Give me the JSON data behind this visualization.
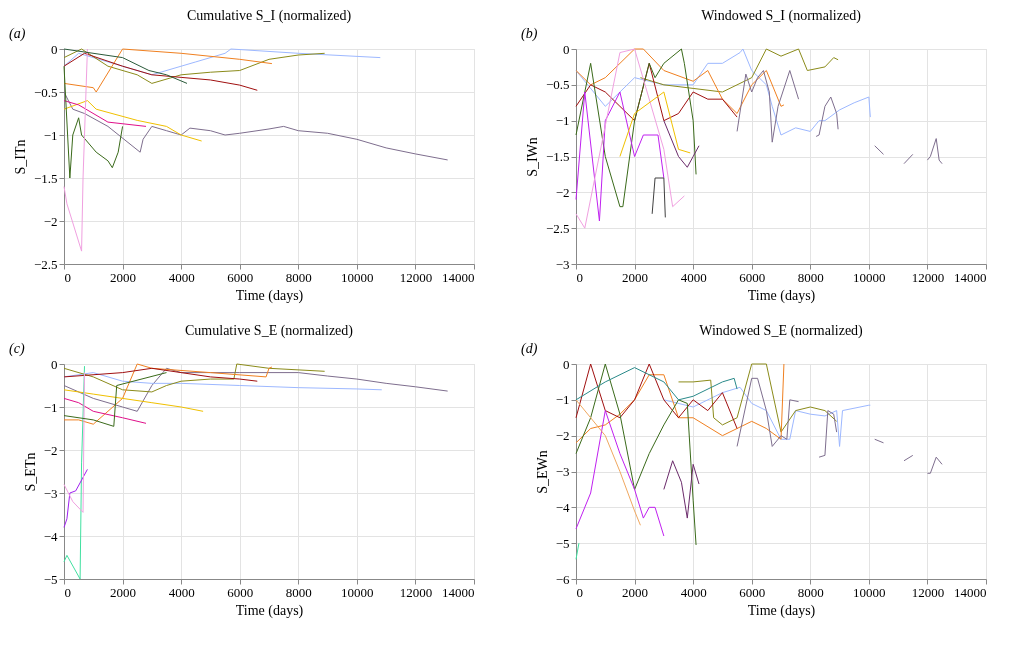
{
  "chart_data": [
    {
      "type": "line",
      "title": "Cumulative S_I (normalized)",
      "xlabel": "Time (days)",
      "ylabel": "S_ITn",
      "annotations": [
        "(a)"
      ],
      "grid": true,
      "xlim": [
        0,
        14000
      ],
      "xticks": [
        0,
        2000,
        4000,
        6000,
        8000,
        10000,
        12000,
        14000
      ],
      "ylim": [
        -2.5,
        0
      ],
      "yticks": [
        -2.5,
        -2,
        -1.5,
        -1,
        -0.5,
        0
      ],
      "series": [
        {
          "color": "#7e6e8e",
          "x": [
            0,
            300,
            700,
            1500,
            2600,
            2700,
            3000,
            3500,
            4000,
            4300,
            5000,
            5500,
            6000,
            7000,
            7500,
            8000,
            9000,
            10000,
            11000,
            12000,
            13100
          ],
          "values": [
            -0.5,
            -0.7,
            -0.75,
            -0.9,
            -1.2,
            -1.05,
            -0.9,
            -0.95,
            -1.0,
            -0.92,
            -0.95,
            -1.0,
            -0.98,
            -0.93,
            -0.9,
            -0.95,
            -0.98,
            -1.05,
            -1.15,
            -1.22,
            -1.29
          ]
        },
        {
          "color": "#9db8ff",
          "x": [
            0,
            500,
            1500,
            3000,
            4500,
            5500,
            5700,
            8000,
            10800
          ],
          "values": [
            -0.2,
            -0.05,
            -0.15,
            -0.3,
            -0.15,
            -0.05,
            0,
            -0.05,
            -0.1
          ]
        },
        {
          "color": "#8b8b1a",
          "x": [
            0,
            600,
            1500,
            2500,
            3000,
            4000,
            5000,
            6000,
            7000,
            8000,
            8900
          ],
          "values": [
            -0.1,
            0,
            -0.2,
            -0.3,
            -0.4,
            -0.3,
            -0.27,
            -0.25,
            -0.12,
            -0.07,
            -0.05
          ]
        },
        {
          "color": "#f08020",
          "x": [
            0,
            1000,
            1100,
            2000,
            4000,
            6000,
            7100
          ],
          "values": [
            -0.4,
            -0.45,
            -0.5,
            0,
            -0.05,
            -0.12,
            -0.17
          ]
        },
        {
          "color": "#a01010",
          "x": [
            0,
            700,
            2000,
            3000,
            4000,
            5000,
            6000,
            6600
          ],
          "values": [
            -0.2,
            -0.05,
            -0.2,
            -0.3,
            -0.33,
            -0.36,
            -0.42,
            -0.48
          ]
        },
        {
          "color": "#f0c000",
          "x": [
            0,
            800,
            1100,
            2500,
            3500,
            4000,
            4700
          ],
          "values": [
            -0.7,
            -0.6,
            -0.7,
            -0.83,
            -0.9,
            -1.0,
            -1.07
          ]
        },
        {
          "color": "#e0108a",
          "x": [
            0,
            500,
            1500,
            2800
          ],
          "values": [
            -0.6,
            -0.65,
            -0.85,
            -0.9
          ]
        },
        {
          "color": "#3a6a1a",
          "x": [
            0,
            200,
            300,
            500,
            600,
            1100,
            1500,
            1650,
            1850,
            2000
          ],
          "values": [
            -0.2,
            -1.5,
            -1.0,
            -0.8,
            -1.0,
            -1.2,
            -1.3,
            -1.38,
            -1.2,
            -0.9
          ]
        },
        {
          "color": "#f0a0e0",
          "x": [
            0,
            100,
            600,
            650,
            800
          ],
          "values": [
            -1.6,
            -1.8,
            -2.35,
            -1.5,
            0
          ]
        },
        {
          "color": "#2a5a3a",
          "x": [
            0,
            2000,
            2900,
            3500,
            4200
          ],
          "values": [
            0,
            -0.1,
            -0.25,
            -0.3,
            -0.4
          ]
        }
      ]
    },
    {
      "type": "line",
      "title": "Windowed S_I (normalized)",
      "xlabel": "Time (days)",
      "ylabel": "S_IWn",
      "annotations": [
        "(b)"
      ],
      "grid": true,
      "xlim": [
        0,
        14000
      ],
      "xticks": [
        0,
        2000,
        4000,
        6000,
        8000,
        10000,
        12000,
        14000
      ],
      "ylim": [
        -3,
        0
      ],
      "yticks": [
        -3,
        -2.5,
        -2,
        -1.5,
        -1,
        -0.5,
        0
      ],
      "series": [
        {
          "color": "#9db8ff",
          "x": [
            0,
            1000,
            2000,
            3000,
            4000,
            4500,
            5000,
            5600,
            5700,
            6000,
            6500,
            6700,
            7000,
            7500,
            8000,
            8300,
            8500,
            9000,
            9500,
            10000,
            10050
          ],
          "values": [
            -0.3,
            -0.8,
            -0.4,
            -0.5,
            -0.5,
            -0.2,
            -0.2,
            -0.05,
            0,
            -0.3,
            -0.5,
            -0.8,
            -1.2,
            -1.1,
            -1.15,
            -1.0,
            -1.0,
            -0.85,
            -0.75,
            -0.67,
            -0.95
          ]
        },
        {
          "color": "#8b8b1a",
          "x": [
            2200,
            3000,
            4000,
            5000,
            6000,
            6500,
            7000,
            7600,
            7900,
            8500,
            8800,
            8950
          ],
          "values": [
            -0.4,
            -0.5,
            -0.55,
            -0.6,
            -0.4,
            0,
            -0.1,
            0,
            -0.3,
            -0.25,
            -0.12,
            -0.15
          ]
        },
        {
          "color": "#f08020",
          "x": [
            0,
            500,
            1000,
            2000,
            2300,
            3000,
            4000,
            4500,
            5000,
            5500,
            6000,
            6500,
            6800,
            7000,
            7100
          ],
          "values": [
            -0.3,
            -0.5,
            -0.4,
            0,
            0,
            -0.3,
            -0.45,
            -0.3,
            -0.7,
            -0.9,
            -0.5,
            -0.3,
            -0.6,
            -0.8,
            -0.78
          ]
        },
        {
          "color": "#7e6e8e",
          "x": [
            5500,
            5800,
            6000,
            6200,
            6400,
            6600,
            6700,
            6900,
            7300,
            7600,
            7700,
            8200,
            8300,
            8500,
            8700,
            8900,
            8950,
            9000,
            10200,
            10500,
            10600,
            11200,
            11500,
            11600,
            12000,
            12100,
            12300,
            12400,
            12500
          ],
          "values": [
            -1.15,
            -0.35,
            -0.6,
            -0.4,
            -0.3,
            -0.6,
            -1.3,
            -0.8,
            -0.3,
            -0.7,
            null,
            -1.22,
            -1.2,
            -0.8,
            -0.67,
            -0.9,
            -1.12,
            null,
            -1.35,
            -1.47,
            null,
            -1.6,
            -1.47,
            null,
            -1.55,
            -1.5,
            -1.25,
            -1.55,
            -1.6
          ]
        },
        {
          "color": "#a01010",
          "x": [
            0,
            500,
            1000,
            1500,
            2000,
            2500,
            3000,
            3500,
            4000,
            4500,
            5000,
            5500
          ],
          "values": [
            -0.8,
            -0.5,
            -0.6,
            -0.8,
            -1.0,
            -0.2,
            -1.0,
            -0.9,
            -0.6,
            -0.7,
            -0.7,
            -0.95
          ]
        },
        {
          "color": "#3a6a1a",
          "x": [
            0,
            500,
            1000,
            1500,
            1600,
            2000,
            2500,
            2700,
            3000,
            3600,
            3700,
            4000,
            4100
          ],
          "values": [
            -1.2,
            -0.2,
            -1.5,
            -2.2,
            -2.2,
            -1.0,
            -0.2,
            -0.4,
            -0.2,
            0,
            -0.2,
            -1.0,
            -1.75
          ]
        },
        {
          "color": "#c020f0",
          "x": [
            0,
            300,
            800,
            1000,
            1500,
            2000,
            2300,
            2800,
            3000
          ],
          "values": [
            -2.1,
            -0.6,
            -2.4,
            -1.0,
            -0.6,
            -1.5,
            -1.2,
            -1.2,
            -1.8
          ]
        },
        {
          "color": "#f0a0e0",
          "x": [
            0,
            300,
            1500,
            2000,
            3000,
            3300,
            3700
          ],
          "values": [
            -2.3,
            -2.5,
            -0.05,
            0,
            -1.4,
            -2.2,
            -2.05
          ]
        },
        {
          "color": "#404040",
          "x": [
            2600,
            2700,
            3000,
            3050
          ],
          "values": [
            -2.3,
            -1.8,
            -1.8,
            -2.35
          ]
        },
        {
          "color": "#f0c000",
          "x": [
            1500,
            2000,
            3000,
            3500,
            3900
          ],
          "values": [
            -1.5,
            -0.9,
            -0.6,
            -1.4,
            -1.45
          ]
        },
        {
          "color": "#6a2a6a",
          "x": [
            3000,
            3500,
            3800,
            4000,
            4200
          ],
          "values": [
            -1.0,
            -1.5,
            -1.65,
            -1.5,
            -1.35
          ]
        }
      ]
    },
    {
      "type": "line",
      "title": "Cumulative S_E (normalized)",
      "xlabel": "Time (days)",
      "ylabel": "S_ETn",
      "annotations": [
        "(c)"
      ],
      "grid": true,
      "xlim": [
        0,
        14000
      ],
      "xticks": [
        0,
        2000,
        4000,
        6000,
        8000,
        10000,
        12000,
        14000
      ],
      "ylim": [
        -5,
        0
      ],
      "yticks": [
        -5,
        -4,
        -3,
        -2,
        -1,
        0
      ],
      "series": [
        {
          "color": "#7e6e8e",
          "x": [
            0,
            1000,
            2000,
            2500,
            3000,
            3500,
            4000,
            5000,
            6000,
            8000,
            9000,
            10000,
            11000,
            12000,
            13100
          ],
          "values": [
            -0.5,
            -0.8,
            -1.0,
            -1.1,
            -0.5,
            -0.1,
            -0.2,
            -0.2,
            -0.2,
            -0.2,
            -0.28,
            -0.35,
            -0.45,
            -0.53,
            -0.63
          ]
        },
        {
          "color": "#9db8ff",
          "x": [
            0,
            1000,
            2000,
            3000,
            4000,
            6000,
            8000,
            10000,
            10850
          ],
          "values": [
            -0.3,
            -0.2,
            -0.4,
            -0.45,
            -0.45,
            -0.5,
            -0.55,
            -0.58,
            -0.6
          ]
        },
        {
          "color": "#8b8b1a",
          "x": [
            0,
            1000,
            2000,
            3000,
            3500,
            4000,
            5000,
            5800,
            5900,
            7000,
            8900
          ],
          "values": [
            -0.1,
            -0.3,
            -0.6,
            -0.65,
            -0.5,
            -0.4,
            -0.35,
            -0.35,
            0,
            -0.1,
            -0.17
          ]
        },
        {
          "color": "#f08020",
          "x": [
            0,
            500,
            1000,
            2000,
            2500,
            3000,
            5000,
            6900,
            7000,
            7100
          ],
          "values": [
            -1.3,
            -1.3,
            -1.4,
            -0.8,
            0,
            -0.1,
            -0.2,
            -0.3,
            -0.1,
            -0.07
          ]
        },
        {
          "color": "#a01010",
          "x": [
            0,
            2000,
            3000,
            4000,
            5000,
            6000,
            6600
          ],
          "values": [
            -0.3,
            -0.2,
            -0.1,
            -0.2,
            -0.3,
            -0.35,
            -0.4
          ]
        },
        {
          "color": "#f0c000",
          "x": [
            0,
            1000,
            2000,
            3000,
            4000,
            4750
          ],
          "values": [
            -0.6,
            -0.7,
            -0.8,
            -0.9,
            -1.0,
            -1.1
          ]
        },
        {
          "color": "#e0108a",
          "x": [
            0,
            500,
            1000,
            2000,
            2800
          ],
          "values": [
            -0.8,
            -0.9,
            -1.1,
            -1.25,
            -1.38
          ]
        },
        {
          "color": "#40e0a0",
          "x": [
            0,
            100,
            550,
            600,
            700
          ],
          "values": [
            -4.6,
            -4.45,
            -5.0,
            -2.3,
            -0.05
          ]
        },
        {
          "color": "#a020f0",
          "x": [
            0,
            100,
            200,
            400,
            800
          ],
          "values": [
            -3.8,
            -3.6,
            -3.0,
            -2.95,
            -2.45
          ]
        },
        {
          "color": "#f0a0e0",
          "x": [
            0,
            300,
            650,
            700
          ],
          "values": [
            -2.8,
            -3.2,
            -3.45,
            -0.2
          ]
        },
        {
          "color": "#3a6a1a",
          "x": [
            0,
            1000,
            1700,
            1800,
            3500
          ],
          "values": [
            -1.2,
            -1.3,
            -1.45,
            -0.5,
            -0.2
          ]
        }
      ]
    },
    {
      "type": "line",
      "title": "Windowed S_E (normalized)",
      "xlabel": "Time (days)",
      "ylabel": "S_EWn",
      "annotations": [
        "(d)"
      ],
      "grid": true,
      "xlim": [
        0,
        14000
      ],
      "xticks": [
        0,
        2000,
        4000,
        6000,
        8000,
        10000,
        12000,
        14000
      ],
      "ylim": [
        -6,
        0
      ],
      "yticks": [
        -6,
        -5,
        -4,
        -3,
        -2,
        -1,
        0
      ],
      "series": [
        {
          "color": "#9db8ff",
          "x": [
            3000,
            4000,
            5000,
            5600,
            6000,
            6500,
            7000,
            7300,
            7500,
            8000,
            8500,
            8900,
            9000,
            9100,
            10000,
            10050
          ],
          "values": [
            -1.0,
            -1.2,
            -0.8,
            -0.65,
            -1.1,
            -1.3,
            -2.1,
            -2.1,
            -1.3,
            -1.4,
            -1.45,
            -1.3,
            -2.3,
            -1.3,
            -1.15,
            -1.15
          ]
        },
        {
          "color": "#8b8b1a",
          "x": [
            3500,
            4000,
            4600,
            4700,
            5000,
            5500,
            6000,
            6500,
            7000,
            7500,
            8000,
            8500,
            8900
          ],
          "values": [
            -0.5,
            -0.5,
            -0.45,
            -1.5,
            -1.7,
            -1.5,
            0,
            0,
            -1.9,
            -1.3,
            -1.2,
            -1.3,
            -1.6
          ]
        },
        {
          "color": "#f08020",
          "x": [
            0,
            500,
            1000,
            1500,
            2000,
            2500,
            3000,
            3500,
            4000,
            5000,
            5500,
            6000,
            6500,
            7000,
            7100
          ],
          "values": [
            -2.2,
            -1.8,
            -1.7,
            -1.4,
            -1.0,
            -0.3,
            -0.3,
            -1.5,
            -1.5,
            -2.0,
            -1.8,
            -1.6,
            -1.8,
            -2.1,
            0
          ]
        },
        {
          "color": "#7e6e8e",
          "x": [
            5500,
            6000,
            6200,
            6500,
            6700,
            7000,
            7200,
            7300,
            7600,
            7700,
            8300,
            8500,
            8600,
            8800,
            8900,
            9000,
            10200,
            10500,
            10600,
            11200,
            11500,
            11600,
            12000,
            12100,
            12300,
            12500
          ],
          "values": [
            -2.3,
            -0.4,
            -0.4,
            -1.3,
            -2.3,
            -2.0,
            -2.1,
            -1.0,
            -1.05,
            null,
            -2.6,
            -2.55,
            -1.3,
            -1.4,
            -1.9,
            null,
            -2.1,
            -2.2,
            null,
            -2.7,
            -2.55,
            null,
            -3.05,
            -3.05,
            -2.6,
            -2.8
          ]
        },
        {
          "color": "#a01010",
          "x": [
            0,
            500,
            1000,
            1500,
            2000,
            2500,
            3000,
            3500,
            4000,
            4500,
            5000,
            5500
          ],
          "values": [
            -1.5,
            0,
            -1.3,
            -1.5,
            -1.0,
            0,
            -1.0,
            -1.5,
            -1.0,
            -1.3,
            -0.8,
            -1.8
          ]
        },
        {
          "color": "#3a6a1a",
          "x": [
            0,
            500,
            1000,
            1500,
            2000,
            2500,
            3000,
            3500,
            3800,
            4000,
            4100
          ],
          "values": [
            -2.5,
            -1.5,
            0,
            -1.4,
            -3.5,
            -2.5,
            -1.7,
            -1.0,
            -1.1,
            -3.8,
            -5.05
          ]
        },
        {
          "color": "#c020f0",
          "x": [
            0,
            500,
            1000,
            1500,
            2000,
            2300,
            2500,
            2700,
            3000
          ],
          "values": [
            -4.6,
            -3.6,
            -1.3,
            -2.5,
            -3.5,
            -4.3,
            -4.0,
            -4.0,
            -4.8
          ]
        },
        {
          "color": "#f0a860",
          "x": [
            0,
            1000,
            1500,
            2000,
            2200
          ],
          "values": [
            -1.0,
            -2.0,
            -3.0,
            -4.1,
            -4.5
          ]
        },
        {
          "color": "#2a8a8a",
          "x": [
            0,
            1000,
            2000,
            3000,
            3500,
            4000,
            5000,
            5400,
            5500
          ],
          "values": [
            -1.0,
            -0.5,
            -0.1,
            -0.5,
            -1.0,
            -0.9,
            -0.5,
            -0.4,
            -0.7
          ]
        },
        {
          "color": "#40e0a0",
          "x": [
            0,
            100
          ],
          "values": [
            -5.45,
            -5.0
          ]
        },
        {
          "color": "#6a2a6a",
          "x": [
            3000,
            3300,
            3600,
            3800,
            4000,
            4200
          ],
          "values": [
            -3.5,
            -2.7,
            -3.3,
            -4.3,
            -2.8,
            -3.35
          ]
        }
      ]
    }
  ]
}
